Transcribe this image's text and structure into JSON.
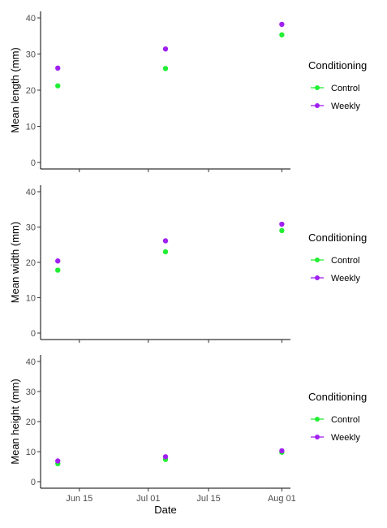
{
  "chart_data": [
    {
      "type": "scatter",
      "ylabel": "Mean length (mm)",
      "xlabel": "",
      "ylim": [
        0,
        40
      ],
      "yticks": [
        0,
        10,
        20,
        30,
        40
      ],
      "xlim": [
        "2019-06-06",
        "2019-08-03"
      ],
      "xticks": [],
      "legend": {
        "title": "Conditioning",
        "position": "right"
      },
      "series": [
        {
          "name": "Control",
          "color": "#22ee33",
          "x": [
            "2019-06-10",
            "2019-07-05",
            "2019-08-01"
          ],
          "y": [
            21.2,
            26.0,
            35.3
          ]
        },
        {
          "name": "Weekly",
          "color": "#a020f0",
          "x": [
            "2019-06-10",
            "2019-07-05",
            "2019-08-01"
          ],
          "y": [
            26.1,
            31.4,
            38.2
          ]
        }
      ]
    },
    {
      "type": "scatter",
      "ylabel": "Mean width (mm)",
      "xlabel": "",
      "ylim": [
        0,
        40
      ],
      "yticks": [
        0,
        10,
        20,
        30,
        40
      ],
      "xlim": [
        "2019-06-06",
        "2019-08-03"
      ],
      "xticks": [],
      "legend": {
        "title": "Conditioning",
        "position": "right"
      },
      "series": [
        {
          "name": "Control",
          "color": "#22ee33",
          "x": [
            "2019-06-10",
            "2019-07-05",
            "2019-08-01"
          ],
          "y": [
            17.8,
            23.0,
            29.0
          ]
        },
        {
          "name": "Weekly",
          "color": "#a020f0",
          "x": [
            "2019-06-10",
            "2019-07-05",
            "2019-08-01"
          ],
          "y": [
            20.4,
            26.1,
            30.8
          ]
        }
      ]
    },
    {
      "type": "scatter",
      "ylabel": "Mean height (mm)",
      "xlabel": "Date",
      "ylim": [
        0,
        40
      ],
      "yticks": [
        0,
        10,
        20,
        30,
        40
      ],
      "xlim": [
        "2019-06-06",
        "2019-08-03"
      ],
      "xticks": [
        {
          "value": "2019-06-15",
          "label": "Jun 15"
        },
        {
          "value": "2019-07-01",
          "label": "Jul 01"
        },
        {
          "value": "2019-07-15",
          "label": "Jul 15"
        },
        {
          "value": "2019-08-01",
          "label": "Aug 01"
        }
      ],
      "legend": {
        "title": "Conditioning",
        "position": "right"
      },
      "series": [
        {
          "name": "Control",
          "color": "#22ee33",
          "x": [
            "2019-06-10",
            "2019-07-05",
            "2019-08-01"
          ],
          "y": [
            6.0,
            7.4,
            9.8
          ]
        },
        {
          "name": "Weekly",
          "color": "#a020f0",
          "x": [
            "2019-06-10",
            "2019-07-05",
            "2019-08-01"
          ],
          "y": [
            6.9,
            8.3,
            10.3
          ]
        }
      ]
    }
  ]
}
